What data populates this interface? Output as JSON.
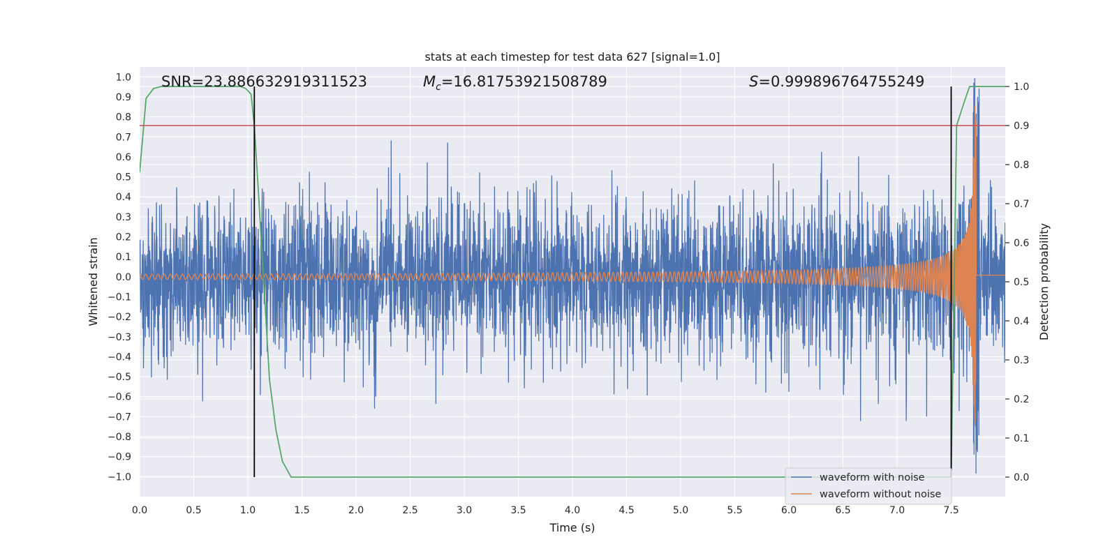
{
  "chart_data": {
    "type": "line",
    "title": "stats at each timestep for test data 627 [signal=1.0]",
    "xlabel": "Time (s)",
    "ylabel": "Whitened strain",
    "y2label": "Detection probability",
    "xlim": [
      0.0,
      8.0
    ],
    "ylim": [
      -1.1,
      1.05
    ],
    "y2lim": [
      -0.05,
      1.05
    ],
    "x_ticks": [
      0.0,
      0.5,
      1.0,
      1.5,
      2.0,
      2.5,
      3.0,
      3.5,
      4.0,
      4.5,
      5.0,
      5.5,
      6.0,
      6.5,
      7.0,
      7.5
    ],
    "x_tick_labels": [
      "0.0",
      "0.5",
      "1.0",
      "1.5",
      "2.0",
      "2.5",
      "3.0",
      "3.5",
      "4.0",
      "4.5",
      "5.0",
      "5.5",
      "6.0",
      "6.5",
      "7.0",
      "7.5"
    ],
    "y_ticks": [
      1.0,
      0.9,
      0.8,
      0.7,
      0.6,
      0.5,
      0.4,
      0.3,
      0.2,
      0.1,
      0.0,
      -0.1,
      -0.2,
      -0.3,
      -0.4,
      -0.5,
      -0.6,
      -0.7,
      -0.8,
      -0.9,
      -1.0
    ],
    "y_tick_labels": [
      "1.0",
      "0.9",
      "0.8",
      "0.7",
      "0.6",
      "0.5",
      "0.4",
      "0.3",
      "0.2",
      "0.1",
      "0.0",
      "−0.1",
      "−0.2",
      "−0.3",
      "−0.4",
      "−0.5",
      "−0.6",
      "−0.7",
      "−0.8",
      "−0.9",
      "−1.0"
    ],
    "y2_ticks": [
      1.0,
      0.9,
      0.8,
      0.7,
      0.6,
      0.5,
      0.4,
      0.3,
      0.2,
      0.1,
      0.0
    ],
    "y2_tick_labels": [
      "1.0",
      "0.9",
      "0.8",
      "0.7",
      "0.6",
      "0.5",
      "0.4",
      "0.3",
      "0.2",
      "0.1",
      "0.0"
    ],
    "grid": true,
    "annotations": {
      "snr": "SNR=23.886632919311523",
      "mc_symbol": "M",
      "mc_sub": "c",
      "mc_value": "=16.81753921508789",
      "s_symbol": "S",
      "s_value": "=0.999896764755249"
    },
    "legend": {
      "location": "lower-right",
      "entries": [
        {
          "label": "waveform with noise",
          "color": "#4c72b0"
        },
        {
          "label": "waveform without noise",
          "color": "#dd8452"
        }
      ]
    },
    "noise_waveform": {
      "name": "waveform with noise",
      "color": "#4c72b0",
      "t_start": 0.0,
      "t_end": 8.0,
      "approx_std": 0.2,
      "approx_range": [
        -0.7,
        0.66
      ],
      "points": 3600
    },
    "clean_waveform": {
      "name": "waveform without noise",
      "color": "#dd8452",
      "t_start": 0.0,
      "t_merger": 7.73,
      "t_end": 8.0,
      "amp_initial": 0.013,
      "amp_peak": 0.9,
      "freq_initial_hz": 17.5,
      "points": 5000
    },
    "detection_probability": {
      "name": "detection probability",
      "color": "#55a868",
      "axis": "right",
      "t": [
        0.0,
        0.06,
        0.13,
        0.2,
        0.4,
        0.6,
        0.8,
        0.93,
        0.98,
        1.03,
        1.06,
        1.1,
        1.2,
        1.26,
        1.32,
        1.4,
        1.5,
        3.0,
        5.0,
        7.0,
        7.5,
        7.55,
        7.62,
        7.67,
        7.75,
        8.0
      ],
      "values": [
        0.78,
        0.97,
        0.995,
        1.0,
        1.0,
        1.0,
        1.0,
        1.0,
        0.995,
        0.98,
        0.9,
        0.72,
        0.25,
        0.12,
        0.04,
        0.0,
        0.0,
        0.0,
        0.0,
        0.0,
        0.0,
        0.9,
        0.96,
        1.0,
        1.0,
        1.0
      ]
    },
    "threshold": {
      "name": "threshold",
      "value": 0.9,
      "axis": "right",
      "color": "#c44e52"
    },
    "vertical_markers": [
      {
        "x": 1.06,
        "color": "#000000"
      },
      {
        "x": 7.5,
        "color": "#000000"
      }
    ]
  }
}
